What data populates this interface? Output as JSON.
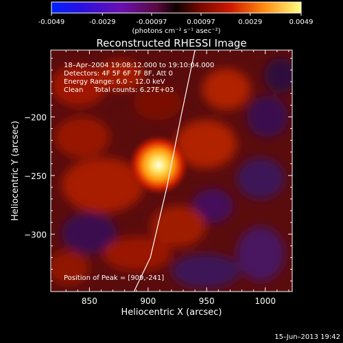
{
  "colorbar": {
    "ticks": [
      "-0.0049",
      "-0.0029",
      "-0.00097",
      "0.00097",
      "0.0029",
      "0.0049"
    ],
    "unit_label": "(photons cm⁻² s⁻¹ asec⁻²)",
    "range": [
      -0.0049,
      0.0049
    ]
  },
  "chart_data": {
    "type": "heatmap",
    "title": "Reconstructed RHESSI Image",
    "xlabel": "Heliocentric X (arcsec)",
    "ylabel": "Heliocentric Y (arcsec)",
    "xlim": [
      817,
      1023
    ],
    "ylim": [
      -349,
      -143
    ],
    "x_ticks": [
      850,
      900,
      950,
      1000
    ],
    "y_ticks": [
      -200,
      -250,
      -300
    ],
    "x_tick_labels": [
      "850",
      "900",
      "950",
      "1000"
    ],
    "y_tick_labels": [
      "−200",
      "−250",
      "−300"
    ],
    "peak": {
      "x": 909,
      "y": -241
    },
    "limb_curve": [
      [
        940,
        -143
      ],
      [
        928,
        -200
      ],
      [
        916,
        -260
      ],
      [
        902,
        -320
      ],
      [
        888,
        -349
      ]
    ],
    "annotations": {
      "time": "18–Apr–2004 19:08:12.000 to 19:10:04.000",
      "detectors": "Detectors: 4F 5F 6F 7F 8F, Att 0",
      "energy": "Energy Range: 6.0 – 12.0 keV",
      "clean": "Clean     Total counts: 6.27E+03",
      "peak_position": "Position of Peak = [909,-241]"
    }
  },
  "footer": {
    "date": "15–Jun–2013 19:42"
  }
}
